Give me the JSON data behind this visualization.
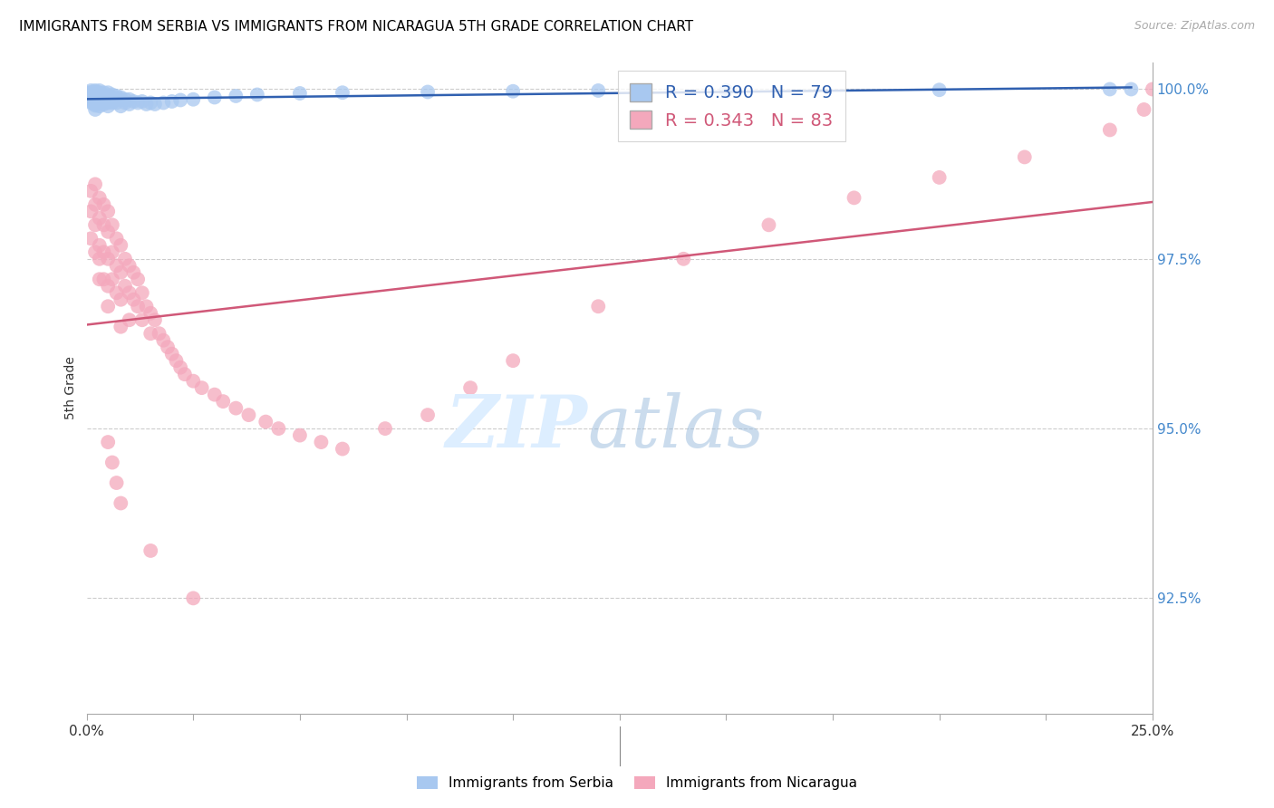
{
  "title": "IMMIGRANTS FROM SERBIA VS IMMIGRANTS FROM NICARAGUA 5TH GRADE CORRELATION CHART",
  "source": "Source: ZipAtlas.com",
  "ylabel": "5th Grade",
  "ytick_labels": [
    "100.0%",
    "97.5%",
    "95.0%",
    "92.5%"
  ],
  "ytick_values": [
    1.0,
    0.975,
    0.95,
    0.925
  ],
  "xmin": 0.0,
  "xmax": 0.25,
  "ymin": 0.908,
  "ymax": 1.004,
  "serbia_color": "#a8c8f0",
  "nicaragua_color": "#f4a8bc",
  "serbia_line_color": "#3060b0",
  "nicaragua_line_color": "#d05878",
  "serbia_R": 0.39,
  "serbia_N": 79,
  "nicaragua_R": 0.343,
  "nicaragua_N": 83,
  "serbia_x": [
    0.0005,
    0.0008,
    0.001,
    0.001,
    0.001,
    0.001,
    0.001,
    0.001,
    0.001,
    0.001,
    0.001,
    0.002,
    0.002,
    0.002,
    0.002,
    0.002,
    0.002,
    0.002,
    0.002,
    0.002,
    0.002,
    0.002,
    0.002,
    0.002,
    0.003,
    0.003,
    0.003,
    0.003,
    0.003,
    0.003,
    0.003,
    0.003,
    0.004,
    0.004,
    0.004,
    0.004,
    0.004,
    0.004,
    0.005,
    0.005,
    0.005,
    0.005,
    0.005,
    0.006,
    0.006,
    0.006,
    0.006,
    0.007,
    0.007,
    0.007,
    0.008,
    0.008,
    0.008,
    0.009,
    0.009,
    0.01,
    0.01,
    0.011,
    0.012,
    0.013,
    0.014,
    0.015,
    0.016,
    0.018,
    0.02,
    0.022,
    0.025,
    0.03,
    0.035,
    0.04,
    0.05,
    0.06,
    0.08,
    0.1,
    0.12,
    0.15,
    0.2,
    0.24,
    0.245
  ],
  "serbia_y": [
    0.9995,
    0.999,
    0.9998,
    0.9995,
    0.9992,
    0.999,
    0.9988,
    0.9986,
    0.9984,
    0.9982,
    0.998,
    0.9998,
    0.9996,
    0.9994,
    0.9992,
    0.999,
    0.9988,
    0.9986,
    0.9984,
    0.9982,
    0.998,
    0.9978,
    0.9976,
    0.997,
    0.9998,
    0.9995,
    0.9992,
    0.999,
    0.9988,
    0.9985,
    0.9982,
    0.9975,
    0.9995,
    0.9992,
    0.9988,
    0.9985,
    0.9982,
    0.9978,
    0.9995,
    0.999,
    0.9985,
    0.998,
    0.9975,
    0.9992,
    0.9988,
    0.9985,
    0.998,
    0.999,
    0.9985,
    0.998,
    0.9988,
    0.9985,
    0.9975,
    0.9985,
    0.998,
    0.9985,
    0.9978,
    0.9982,
    0.998,
    0.9982,
    0.9978,
    0.998,
    0.9978,
    0.998,
    0.9982,
    0.9984,
    0.9985,
    0.9988,
    0.999,
    0.9992,
    0.9994,
    0.9995,
    0.9996,
    0.9997,
    0.9998,
    0.9998,
    0.9999,
    1.0,
    1.0
  ],
  "nicaragua_x": [
    0.001,
    0.001,
    0.001,
    0.002,
    0.002,
    0.002,
    0.002,
    0.003,
    0.003,
    0.003,
    0.003,
    0.003,
    0.004,
    0.004,
    0.004,
    0.004,
    0.005,
    0.005,
    0.005,
    0.005,
    0.005,
    0.006,
    0.006,
    0.006,
    0.007,
    0.007,
    0.007,
    0.008,
    0.008,
    0.008,
    0.008,
    0.009,
    0.009,
    0.01,
    0.01,
    0.01,
    0.011,
    0.011,
    0.012,
    0.012,
    0.013,
    0.013,
    0.014,
    0.015,
    0.015,
    0.016,
    0.017,
    0.018,
    0.019,
    0.02,
    0.021,
    0.022,
    0.023,
    0.025,
    0.027,
    0.03,
    0.032,
    0.035,
    0.038,
    0.042,
    0.045,
    0.05,
    0.055,
    0.06,
    0.07,
    0.08,
    0.09,
    0.1,
    0.12,
    0.14,
    0.16,
    0.18,
    0.2,
    0.22,
    0.24,
    0.248,
    0.25,
    0.005,
    0.006,
    0.007,
    0.008,
    0.015,
    0.025
  ],
  "nicaragua_y": [
    0.985,
    0.982,
    0.978,
    0.986,
    0.983,
    0.98,
    0.976,
    0.984,
    0.981,
    0.977,
    0.975,
    0.972,
    0.983,
    0.98,
    0.976,
    0.972,
    0.982,
    0.979,
    0.975,
    0.971,
    0.968,
    0.98,
    0.976,
    0.972,
    0.978,
    0.974,
    0.97,
    0.977,
    0.973,
    0.969,
    0.965,
    0.975,
    0.971,
    0.974,
    0.97,
    0.966,
    0.973,
    0.969,
    0.972,
    0.968,
    0.97,
    0.966,
    0.968,
    0.967,
    0.964,
    0.966,
    0.964,
    0.963,
    0.962,
    0.961,
    0.96,
    0.959,
    0.958,
    0.957,
    0.956,
    0.955,
    0.954,
    0.953,
    0.952,
    0.951,
    0.95,
    0.949,
    0.948,
    0.947,
    0.95,
    0.952,
    0.956,
    0.96,
    0.968,
    0.975,
    0.98,
    0.984,
    0.987,
    0.99,
    0.994,
    0.997,
    1.0,
    0.948,
    0.945,
    0.942,
    0.939,
    0.932,
    0.925
  ]
}
